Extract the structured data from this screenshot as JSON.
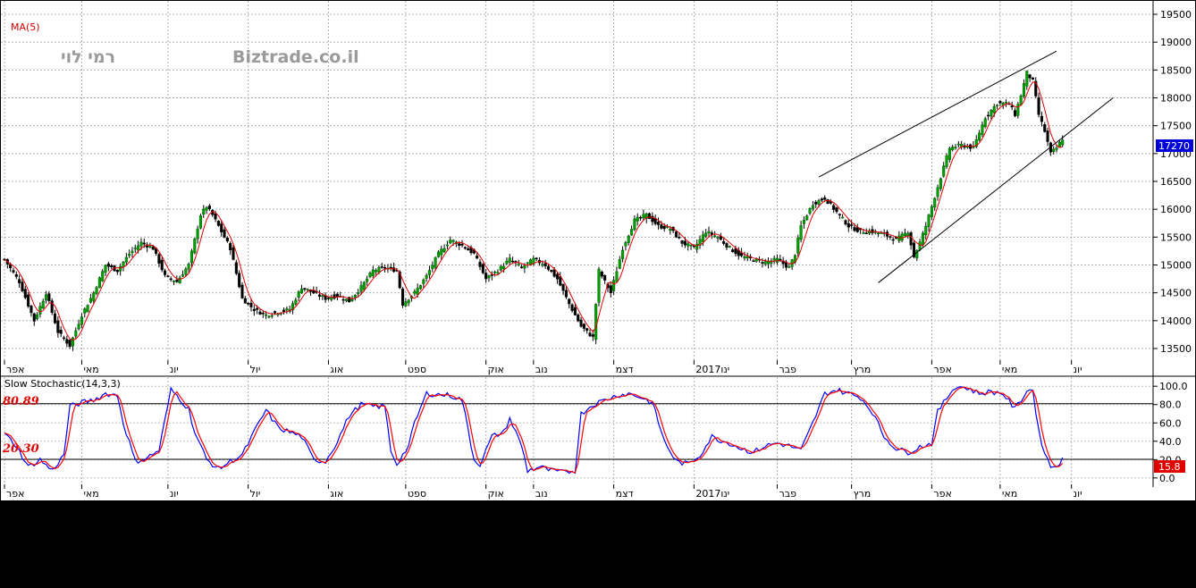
{
  "chart_data": [
    {
      "type": "candlestick",
      "overlay_label": "MA(5)",
      "watermarks": [
        "רמי לוי",
        "Biztrade.co.il"
      ],
      "ylim": [
        13200,
        19700
      ],
      "yticks": [
        13500,
        14000,
        14500,
        15000,
        15500,
        16000,
        16500,
        17000,
        17500,
        18000,
        18500,
        19000,
        19500
      ],
      "last_price": "17270",
      "colors": {
        "up": "#00a000",
        "down": "#000000",
        "ma": "#e00000",
        "channel": "#000000",
        "last_price_bg": "#0000dd"
      },
      "close_anchors": [
        [
          0,
          15100
        ],
        [
          5,
          14700
        ],
        [
          10,
          14000
        ],
        [
          14,
          14500
        ],
        [
          18,
          13800
        ],
        [
          22,
          13550
        ],
        [
          26,
          14100
        ],
        [
          30,
          14500
        ],
        [
          34,
          15000
        ],
        [
          38,
          14900
        ],
        [
          42,
          15200
        ],
        [
          46,
          15400
        ],
        [
          50,
          15300
        ],
        [
          54,
          14800
        ],
        [
          58,
          14700
        ],
        [
          62,
          15000
        ],
        [
          66,
          15900
        ],
        [
          68,
          16050
        ],
        [
          70,
          15900
        ],
        [
          74,
          15500
        ],
        [
          76,
          15300
        ],
        [
          80,
          14400
        ],
        [
          84,
          14200
        ],
        [
          88,
          14100
        ],
        [
          92,
          14150
        ],
        [
          96,
          14200
        ],
        [
          100,
          14600
        ],
        [
          104,
          14500
        ],
        [
          108,
          14400
        ],
        [
          112,
          14450
        ],
        [
          116,
          14350
        ],
        [
          120,
          14600
        ],
        [
          124,
          14900
        ],
        [
          128,
          14950
        ],
        [
          132,
          14900
        ],
        [
          134,
          14300
        ],
        [
          138,
          14500
        ],
        [
          142,
          14800
        ],
        [
          146,
          15200
        ],
        [
          150,
          15450
        ],
        [
          154,
          15350
        ],
        [
          158,
          15200
        ],
        [
          162,
          14750
        ],
        [
          166,
          14900
        ],
        [
          170,
          15100
        ],
        [
          174,
          14950
        ],
        [
          178,
          15100
        ],
        [
          182,
          15000
        ],
        [
          186,
          14750
        ],
        [
          190,
          14300
        ],
        [
          194,
          13900
        ],
        [
          198,
          13700
        ],
        [
          200,
          14900
        ],
        [
          204,
          14500
        ],
        [
          208,
          15300
        ],
        [
          212,
          15800
        ],
        [
          216,
          15900
        ],
        [
          220,
          15700
        ],
        [
          224,
          15650
        ],
        [
          228,
          15400
        ],
        [
          232,
          15300
        ],
        [
          236,
          15600
        ],
        [
          240,
          15500
        ],
        [
          244,
          15300
        ],
        [
          248,
          15150
        ],
        [
          252,
          15100
        ],
        [
          256,
          15050
        ],
        [
          260,
          15100
        ],
        [
          264,
          14950
        ],
        [
          266,
          15200
        ],
        [
          268,
          15700
        ],
        [
          272,
          16100
        ],
        [
          276,
          16200
        ],
        [
          280,
          15950
        ],
        [
          284,
          15700
        ],
        [
          288,
          15600
        ],
        [
          292,
          15600
        ],
        [
          296,
          15550
        ],
        [
          300,
          15450
        ],
        [
          304,
          15600
        ],
        [
          306,
          15150
        ],
        [
          308,
          15400
        ],
        [
          310,
          15700
        ],
        [
          314,
          16400
        ],
        [
          318,
          17100
        ],
        [
          322,
          17150
        ],
        [
          326,
          17100
        ],
        [
          330,
          17650
        ],
        [
          334,
          17900
        ],
        [
          338,
          17900
        ],
        [
          340,
          17700
        ],
        [
          342,
          18050
        ],
        [
          344,
          18450
        ],
        [
          346,
          18300
        ],
        [
          348,
          17700
        ],
        [
          350,
          17400
        ],
        [
          352,
          17000
        ],
        [
          354,
          17100
        ],
        [
          356,
          17270
        ]
      ],
      "trend_channel": {
        "upper": [
          [
            274,
            16580
          ],
          [
            354,
            18840
          ]
        ],
        "lower": [
          [
            294,
            14680
          ],
          [
            373,
            18000
          ]
        ]
      },
      "x_month_labels": [
        {
          "label": "אפר",
          "at": 0
        },
        {
          "label": "מאי",
          "at": 26
        },
        {
          "label": "יונ",
          "at": 55
        },
        {
          "label": "יול",
          "at": 82
        },
        {
          "label": "אוג",
          "at": 109
        },
        {
          "label": "ספט",
          "at": 135
        },
        {
          "label": "אוק",
          "at": 162
        },
        {
          "label": "נוב",
          "at": 178
        },
        {
          "label": "דצמ",
          "at": 205
        },
        {
          "label": "2017ינו",
          "at": 232
        },
        {
          "label": "פבר",
          "at": 260
        },
        {
          "label": "מרץ",
          "at": 285
        },
        {
          "label": "אפר",
          "at": 312
        },
        {
          "label": "מאי",
          "at": 335
        },
        {
          "label": "יונ",
          "at": 359
        }
      ]
    },
    {
      "type": "line",
      "title": "Slow  Stochastic(14,3,3)",
      "ylim": [
        -5,
        107
      ],
      "yticks": [
        "0.0",
        "20.0",
        "40.0",
        "60.0",
        "80.0",
        "100.0"
      ],
      "levels": [
        "80.89",
        "20.30"
      ],
      "last_value": "15.8",
      "series": [
        {
          "color": "#0000ff"
        },
        {
          "color": "#ff0000"
        }
      ],
      "anchors": [
        [
          0,
          48
        ],
        [
          4,
          35
        ],
        [
          8,
          12
        ],
        [
          12,
          20
        ],
        [
          16,
          8
        ],
        [
          20,
          25
        ],
        [
          22,
          78
        ],
        [
          26,
          82
        ],
        [
          30,
          85
        ],
        [
          34,
          92
        ],
        [
          38,
          90
        ],
        [
          40,
          60
        ],
        [
          44,
          18
        ],
        [
          48,
          22
        ],
        [
          52,
          30
        ],
        [
          56,
          96
        ],
        [
          58,
          90
        ],
        [
          62,
          75
        ],
        [
          64,
          50
        ],
        [
          68,
          20
        ],
        [
          72,
          10
        ],
        [
          76,
          18
        ],
        [
          80,
          25
        ],
        [
          84,
          50
        ],
        [
          88,
          74
        ],
        [
          92,
          55
        ],
        [
          96,
          50
        ],
        [
          100,
          45
        ],
        [
          104,
          20
        ],
        [
          108,
          18
        ],
        [
          112,
          40
        ],
        [
          116,
          68
        ],
        [
          120,
          80
        ],
        [
          124,
          78
        ],
        [
          128,
          78
        ],
        [
          130,
          30
        ],
        [
          132,
          15
        ],
        [
          136,
          35
        ],
        [
          138,
          60
        ],
        [
          142,
          92
        ],
        [
          146,
          91
        ],
        [
          150,
          90
        ],
        [
          154,
          85
        ],
        [
          158,
          20
        ],
        [
          160,
          15
        ],
        [
          164,
          45
        ],
        [
          168,
          50
        ],
        [
          170,
          65
        ],
        [
          174,
          35
        ],
        [
          176,
          8
        ],
        [
          180,
          12
        ],
        [
          184,
          8
        ],
        [
          188,
          6
        ],
        [
          192,
          8
        ],
        [
          194,
          70
        ],
        [
          198,
          80
        ],
        [
          202,
          85
        ],
        [
          206,
          90
        ],
        [
          210,
          92
        ],
        [
          214,
          88
        ],
        [
          218,
          82
        ],
        [
          222,
          40
        ],
        [
          226,
          18
        ],
        [
          230,
          15
        ],
        [
          234,
          25
        ],
        [
          238,
          45
        ],
        [
          240,
          42
        ],
        [
          244,
          38
        ],
        [
          248,
          32
        ],
        [
          252,
          28
        ],
        [
          256,
          35
        ],
        [
          260,
          38
        ],
        [
          264,
          35
        ],
        [
          268,
          30
        ],
        [
          272,
          60
        ],
        [
          276,
          92
        ],
        [
          280,
          96
        ],
        [
          284,
          92
        ],
        [
          288,
          88
        ],
        [
          292,
          72
        ],
        [
          296,
          45
        ],
        [
          300,
          32
        ],
        [
          304,
          28
        ],
        [
          308,
          34
        ],
        [
          312,
          38
        ],
        [
          314,
          72
        ],
        [
          318,
          92
        ],
        [
          320,
          100
        ],
        [
          324,
          98
        ],
        [
          328,
          92
        ],
        [
          332,
          94
        ],
        [
          336,
          92
        ],
        [
          340,
          75
        ],
        [
          344,
          95
        ],
        [
          346,
          96
        ],
        [
          348,
          50
        ],
        [
          350,
          28
        ],
        [
          352,
          12
        ],
        [
          354,
          14
        ],
        [
          356,
          20
        ]
      ]
    }
  ]
}
